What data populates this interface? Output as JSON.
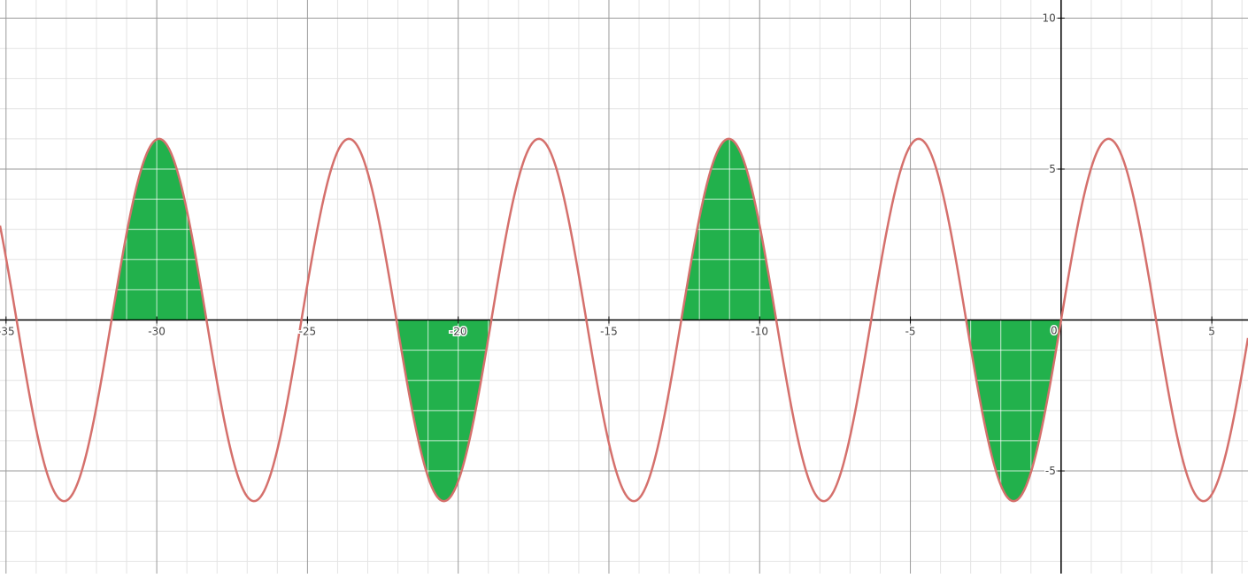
{
  "chart_data": {
    "type": "area",
    "grid": true,
    "xlim": [
      -35.2,
      6.2
    ],
    "ylim": [
      -8.4,
      10.6
    ],
    "x_ticks": [
      {
        "value": -35,
        "label": "-35"
      },
      {
        "value": -30,
        "label": "-30"
      },
      {
        "value": -25,
        "label": "-25"
      },
      {
        "value": -20,
        "label": "-20"
      },
      {
        "value": -15,
        "label": "-15"
      },
      {
        "value": -10,
        "label": "-10"
      },
      {
        "value": -5,
        "label": "-5"
      },
      {
        "value": 5,
        "label": "5"
      }
    ],
    "y_ticks": [
      {
        "value": 10,
        "label": "10"
      },
      {
        "value": 5,
        "label": "5"
      },
      {
        "value": -5,
        "label": "-5"
      }
    ],
    "origin_label": "0",
    "series": [
      {
        "kind": "curve",
        "amplitude": 6,
        "period": 6.3,
        "phase": 0,
        "color": "#d5706c"
      }
    ],
    "shaded_regions": [
      {
        "from": -31.5,
        "to": -28.35,
        "color": "#22b14c"
      },
      {
        "from": -22.05,
        "to": -18.9,
        "color": "#22b14c"
      },
      {
        "from": -12.6,
        "to": -9.45,
        "color": "#22b14c"
      },
      {
        "from": -3.15,
        "to": 0,
        "color": "#22b14c"
      }
    ],
    "colors": {
      "minor_grid": "#e4e4e4",
      "major_grid": "#9a9a9a",
      "axis": "#000000",
      "shade_grid": "#ffffff"
    }
  }
}
